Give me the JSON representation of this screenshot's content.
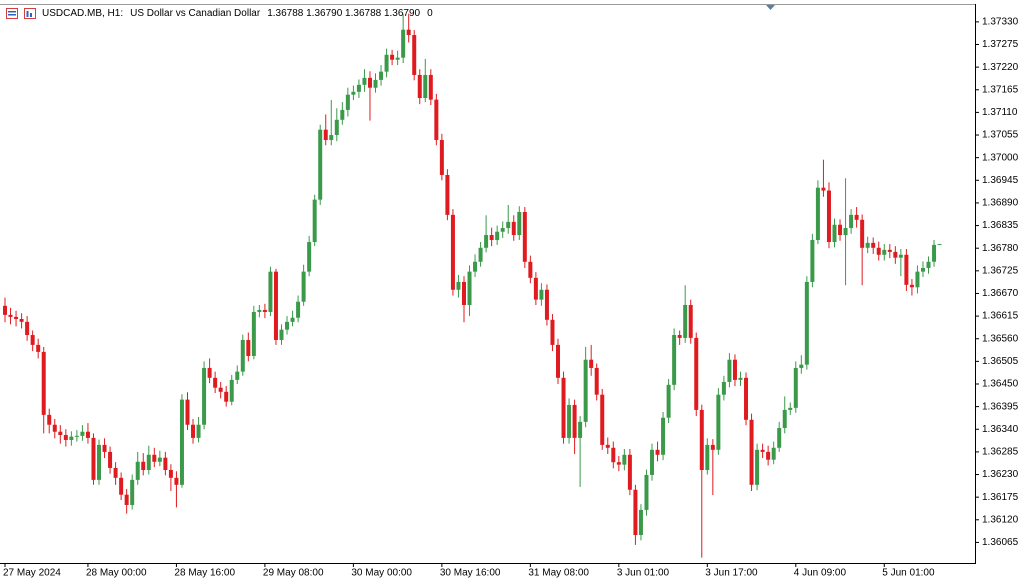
{
  "header": {
    "symbol": "USDCAD.MB, H1:",
    "description": "US Dollar vs Canadian Dollar",
    "quote": "1.36788 1.36790 1.36788 1.36790",
    "volume": "0"
  },
  "chart_data": {
    "type": "candlestick",
    "up_color": "#3a9a4a",
    "down_color": "#e01b1f",
    "grid": false,
    "ylim": [
      1.36015,
      1.37371
    ],
    "yticks": [
      {
        "value": 1.3733,
        "label": "1.37330"
      },
      1.37275,
      {
        "value": 1.3722,
        "label": "1.37220"
      },
      1.37165,
      {
        "value": 1.3711,
        "label": "1.37110"
      },
      1.37055,
      {
        "value": 1.37,
        "label": "1.37000"
      },
      1.36945,
      {
        "value": 1.3689,
        "label": "1.36890"
      },
      1.36835,
      {
        "value": 1.3678,
        "label": "1.36780"
      },
      1.36725,
      {
        "value": 1.3667,
        "label": "1.36670"
      },
      1.36615,
      {
        "value": 1.3656,
        "label": "1.36560"
      },
      1.36505,
      {
        "value": 1.3645,
        "label": "1.36450"
      },
      1.36395,
      {
        "value": 1.3634,
        "label": "1.36340"
      },
      1.36285,
      {
        "value": 1.3623,
        "label": "1.36230"
      },
      1.36175,
      {
        "value": 1.3612,
        "label": "1.36120"
      },
      1.36065
    ],
    "categories": [
      "27 May 2024",
      null,
      null,
      null,
      null,
      null,
      null,
      null,
      null,
      null,
      null,
      null,
      null,
      null,
      null,
      "28 May 00:00",
      null,
      null,
      null,
      null,
      null,
      null,
      null,
      null,
      null,
      null,
      null,
      null,
      null,
      null,
      null,
      "28 May 16:00",
      null,
      null,
      null,
      null,
      null,
      null,
      null,
      null,
      null,
      null,
      null,
      null,
      null,
      null,
      null,
      "29 May 08:00",
      null,
      null,
      null,
      null,
      null,
      null,
      null,
      null,
      null,
      null,
      null,
      null,
      null,
      null,
      null,
      "30 May 00:00",
      null,
      null,
      null,
      null,
      null,
      null,
      null,
      null,
      null,
      null,
      null,
      null,
      null,
      null,
      null,
      "30 May 16:00",
      null,
      null,
      null,
      null,
      null,
      null,
      null,
      null,
      null,
      null,
      null,
      null,
      null,
      null,
      null,
      "31 May 08:00",
      null,
      null,
      null,
      null,
      null,
      null,
      null,
      null,
      null,
      null,
      null,
      null,
      null,
      null,
      null,
      "3 Jun 01:00",
      null,
      null,
      null,
      null,
      null,
      null,
      null,
      null,
      null,
      null,
      null,
      null,
      null,
      null,
      null,
      "3 Jun 17:00",
      null,
      null,
      null,
      null,
      null,
      null,
      null,
      null,
      null,
      null,
      null,
      null,
      null,
      null,
      null,
      "4 Jun 09:00",
      null,
      null,
      null,
      null,
      null,
      null,
      null,
      null,
      null,
      null,
      null,
      null,
      null,
      null,
      null,
      "5 Jun 01:00",
      null,
      null,
      null,
      null,
      null,
      null,
      null,
      null,
      null,
      null
    ],
    "open": [
      1.3664,
      1.36618,
      1.36613,
      1.36608,
      1.36601,
      1.36569,
      1.36545,
      1.36528,
      1.36375,
      1.36351,
      1.36334,
      1.36326,
      1.36314,
      1.36322,
      1.36324,
      1.36334,
      1.36319,
      1.36217,
      1.36302,
      1.36285,
      1.36246,
      1.36222,
      1.36181,
      1.36156,
      1.36217,
      1.36261,
      1.36241,
      1.36278,
      1.36261,
      1.36271,
      1.36241,
      1.36222,
      1.36205,
      1.36412,
      1.36351,
      1.36319,
      1.36351,
      1.36489,
      1.36465,
      1.36441,
      1.36431,
      1.36407,
      1.3646,
      1.3648,
      1.36557,
      1.36518,
      1.36625,
      1.3663,
      1.36625,
      1.36723,
      1.36557,
      1.36582,
      1.36601,
      1.36611,
      1.3665,
      1.36723,
      1.36795,
      1.36898,
      1.37068,
      1.37043,
      1.37055,
      1.37092,
      1.37116,
      1.37153,
      1.3716,
      1.37177,
      1.37194,
      1.3717,
      1.37189,
      1.37209,
      1.3725,
      1.37238,
      1.37243,
      1.37311,
      1.37298,
      1.37201,
      1.37145,
      1.37201,
      1.37141,
      1.37043,
      1.36958,
      1.36861,
      1.36679,
      1.36698,
      1.36642,
      1.36723,
      1.36747,
      1.36781,
      1.36812,
      1.368,
      1.3682,
      1.36829,
      1.36844,
      1.36812,
      1.36868,
      1.36747,
      1.36708,
      1.36655,
      1.36679,
      1.36606,
      1.36545,
      1.36465,
      1.36319,
      1.36399,
      1.36319,
      1.36358,
      1.36509,
      1.36489,
      1.36424,
      1.36302,
      1.36295,
      1.3626,
      1.36254,
      1.36278,
      1.36193,
      1.36083,
      1.36144,
      1.36229,
      1.3629,
      1.36278,
      1.36368,
      1.36448,
      1.36569,
      1.36562,
      1.36642,
      1.36562,
      1.36387,
      1.36241,
      1.36302,
      1.3629,
      1.36424,
      1.36455,
      1.36509,
      1.3646,
      1.36465,
      1.36363,
      1.36205,
      1.3629,
      1.36285,
      1.36266,
      1.36295,
      1.36343,
      1.36387,
      1.36392,
      1.36489,
      1.36497,
      1.36698,
      1.368,
      1.36927,
      1.3692,
      1.36795,
      1.36837,
      1.36812,
      1.36829,
      1.36861,
      1.36849,
      1.36781,
      1.36793,
      1.36781,
      1.36764,
      1.36776,
      1.36771,
      1.36757,
      1.36764,
      1.36691,
      1.36685,
      1.36723,
      1.36732,
      1.36747,
      1.36788
    ],
    "high": [
      1.3666,
      1.36635,
      1.36628,
      1.36622,
      1.36615,
      1.3658,
      1.3656,
      1.3654,
      1.3639,
      1.36365,
      1.3635,
      1.3634,
      1.36335,
      1.36338,
      1.3635,
      1.36355,
      1.3633,
      1.36315,
      1.36318,
      1.36298,
      1.3626,
      1.36235,
      1.36195,
      1.3623,
      1.36285,
      1.36282,
      1.363,
      1.36295,
      1.36288,
      1.36285,
      1.36255,
      1.36238,
      1.36425,
      1.3643,
      1.36365,
      1.3637,
      1.36505,
      1.36512,
      1.3648,
      1.36455,
      1.36445,
      1.36472,
      1.36495,
      1.3657,
      1.36575,
      1.3664,
      1.36642,
      1.36645,
      1.36735,
      1.3673,
      1.36595,
      1.36615,
      1.36628,
      1.36665,
      1.3674,
      1.3681,
      1.3691,
      1.3708,
      1.37105,
      1.3714,
      1.3712,
      1.37135,
      1.3717,
      1.37175,
      1.3719,
      1.37215,
      1.3721,
      1.37205,
      1.37225,
      1.37265,
      1.37262,
      1.3726,
      1.3735,
      1.3735,
      1.3731,
      1.37215,
      1.3724,
      1.37215,
      1.37155,
      1.37058,
      1.36972,
      1.36875,
      1.36715,
      1.36712,
      1.36738,
      1.36765,
      1.36795,
      1.3686,
      1.3683,
      1.36835,
      1.36845,
      1.36885,
      1.3686,
      1.36882,
      1.3688,
      1.36762,
      1.36722,
      1.36695,
      1.36692,
      1.3662,
      1.3656,
      1.3648,
      1.36415,
      1.36412,
      1.36372,
      1.3654,
      1.36545,
      1.365,
      1.36438,
      1.3632,
      1.3631,
      1.36275,
      1.36292,
      1.36292,
      1.36205,
      1.36158,
      1.36242,
      1.36305,
      1.3631,
      1.36382,
      1.36462,
      1.36585,
      1.3658,
      1.3669,
      1.36655,
      1.36575,
      1.364,
      1.36318,
      1.36316,
      1.3644,
      1.3647,
      1.36525,
      1.36522,
      1.3648,
      1.36478,
      1.36378,
      1.36305,
      1.36305,
      1.363,
      1.3631,
      1.36358,
      1.3642,
      1.36405,
      1.36505,
      1.3652,
      1.36712,
      1.36815,
      1.36945,
      1.36995,
      1.3694,
      1.36852,
      1.3685,
      1.3695,
      1.36875,
      1.3688,
      1.36862,
      1.36808,
      1.36806,
      1.36796,
      1.3679,
      1.3679,
      1.36785,
      1.36778,
      1.36778,
      1.36705,
      1.36738,
      1.36748,
      1.3676,
      1.368,
      1.3679
    ],
    "low": [
      1.366,
      1.36595,
      1.3659,
      1.36585,
      1.36555,
      1.3653,
      1.36512,
      1.3633,
      1.3633,
      1.36318,
      1.36305,
      1.36298,
      1.363,
      1.3631,
      1.36312,
      1.36305,
      1.36205,
      1.36205,
      1.3627,
      1.36232,
      1.36205,
      1.36168,
      1.36135,
      1.36145,
      1.36205,
      1.36228,
      1.3623,
      1.36248,
      1.3625,
      1.36228,
      1.3619,
      1.3615,
      1.36198,
      1.36338,
      1.36305,
      1.36308,
      1.3634,
      1.36452,
      1.36428,
      1.36415,
      1.36395,
      1.36398,
      1.3645,
      1.3647,
      1.36505,
      1.3651,
      1.36612,
      1.3661,
      1.36615,
      1.36545,
      1.36545,
      1.3657,
      1.3659,
      1.366,
      1.3664,
      1.36712,
      1.36785,
      1.36885,
      1.3703,
      1.3703,
      1.3704,
      1.3708,
      1.371,
      1.3714,
      1.37145,
      1.3716,
      1.3709,
      1.37158,
      1.37175,
      1.37195,
      1.37225,
      1.37225,
      1.3723,
      1.3728,
      1.37188,
      1.3713,
      1.37135,
      1.37128,
      1.3703,
      1.36945,
      1.36848,
      1.36665,
      1.3666,
      1.366,
      1.36615,
      1.3671,
      1.36735,
      1.3677,
      1.36785,
      1.36788,
      1.36805,
      1.36815,
      1.36798,
      1.368,
      1.36732,
      1.36695,
      1.36642,
      1.3664,
      1.36592,
      1.3653,
      1.3645,
      1.36305,
      1.36305,
      1.3628,
      1.362,
      1.36345,
      1.3647,
      1.3641,
      1.3629,
      1.3628,
      1.36245,
      1.36238,
      1.3624,
      1.3618,
      1.36059,
      1.3607,
      1.3613,
      1.36215,
      1.36262,
      1.36265,
      1.36355,
      1.36435,
      1.36545,
      1.3655,
      1.36548,
      1.36372,
      1.36028,
      1.3623,
      1.3618,
      1.36278,
      1.3641,
      1.36442,
      1.36445,
      1.36445,
      1.3635,
      1.3619,
      1.36192,
      1.3627,
      1.36252,
      1.36255,
      1.36285,
      1.3633,
      1.36375,
      1.3638,
      1.36475,
      1.36485,
      1.36685,
      1.3679,
      1.36905,
      1.3678,
      1.36782,
      1.36798,
      1.3669,
      1.36815,
      1.3683,
      1.3669,
      1.36768,
      1.36766,
      1.3675,
      1.3675,
      1.36756,
      1.36742,
      1.36712,
      1.36676,
      1.36665,
      1.3667,
      1.3671,
      1.36718,
      1.36735,
      1.36788
    ],
    "close": [
      1.36618,
      1.36613,
      1.36608,
      1.36601,
      1.36569,
      1.36545,
      1.36528,
      1.36375,
      1.36351,
      1.36334,
      1.36326,
      1.36314,
      1.36322,
      1.36324,
      1.36334,
      1.36319,
      1.36217,
      1.36302,
      1.36285,
      1.36246,
      1.36222,
      1.36181,
      1.36156,
      1.36217,
      1.36261,
      1.36241,
      1.36278,
      1.36261,
      1.36271,
      1.36241,
      1.36222,
      1.36205,
      1.36412,
      1.36351,
      1.36319,
      1.36351,
      1.36489,
      1.36465,
      1.36441,
      1.36431,
      1.36407,
      1.3646,
      1.3648,
      1.36557,
      1.36518,
      1.36625,
      1.3663,
      1.36625,
      1.36723,
      1.36557,
      1.36582,
      1.36601,
      1.36611,
      1.3665,
      1.36723,
      1.36795,
      1.36898,
      1.37068,
      1.37043,
      1.37055,
      1.37092,
      1.37116,
      1.37153,
      1.3716,
      1.37177,
      1.37194,
      1.3717,
      1.37189,
      1.37209,
      1.3725,
      1.37238,
      1.37243,
      1.37311,
      1.37298,
      1.37201,
      1.37145,
      1.37201,
      1.37141,
      1.37043,
      1.36958,
      1.36861,
      1.36679,
      1.36698,
      1.36642,
      1.36723,
      1.36747,
      1.36781,
      1.36812,
      1.368,
      1.3682,
      1.36829,
      1.36844,
      1.36812,
      1.36868,
      1.36747,
      1.36708,
      1.36655,
      1.36679,
      1.36606,
      1.36545,
      1.36465,
      1.36319,
      1.36399,
      1.36319,
      1.36358,
      1.36509,
      1.36489,
      1.36424,
      1.36302,
      1.36295,
      1.3626,
      1.36254,
      1.36278,
      1.36193,
      1.36083,
      1.36144,
      1.36229,
      1.3629,
      1.36278,
      1.36368,
      1.36448,
      1.36569,
      1.36562,
      1.36642,
      1.36562,
      1.36387,
      1.36241,
      1.36302,
      1.3629,
      1.36424,
      1.36455,
      1.36509,
      1.3646,
      1.36465,
      1.36363,
      1.36205,
      1.3629,
      1.36285,
      1.36266,
      1.36295,
      1.36343,
      1.36387,
      1.36392,
      1.36489,
      1.36497,
      1.36698,
      1.368,
      1.36927,
      1.3692,
      1.36795,
      1.36837,
      1.36812,
      1.36829,
      1.36861,
      1.36849,
      1.36781,
      1.36793,
      1.36781,
      1.36764,
      1.36776,
      1.36771,
      1.36757,
      1.36764,
      1.36691,
      1.36685,
      1.36723,
      1.36732,
      1.36747,
      1.36788,
      1.3679
    ]
  }
}
